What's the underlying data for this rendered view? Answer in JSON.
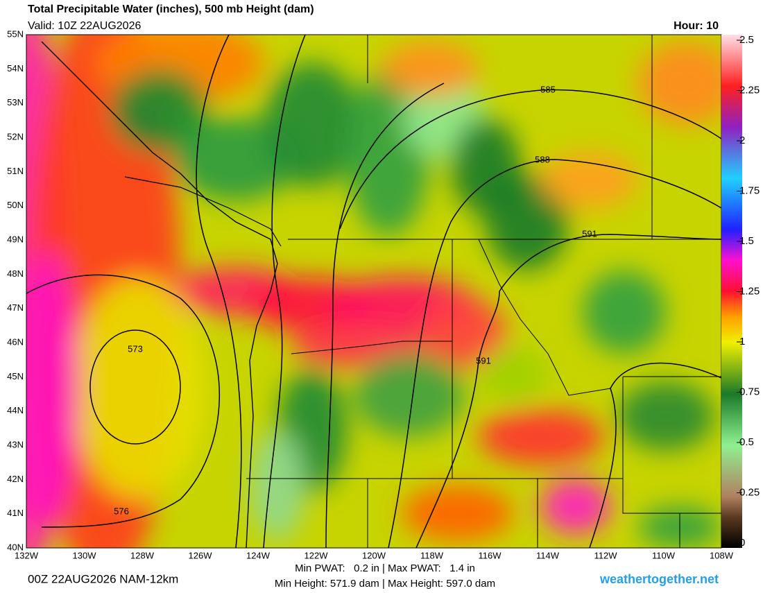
{
  "header": {
    "title": "Total Precipitable Water (inches), 500 mb Height (dam)",
    "valid": "Valid: 10Z 22AUG2026",
    "hour": "Hour: 10"
  },
  "map": {
    "lat_labels": [
      "55N",
      "54N",
      "53N",
      "52N",
      "51N",
      "50N",
      "49N",
      "48N",
      "47N",
      "46N",
      "45N",
      "44N",
      "43N",
      "42N",
      "41N",
      "40N"
    ],
    "lon_labels": [
      "132W",
      "130W",
      "128W",
      "126W",
      "124W",
      "122W",
      "120W",
      "118W",
      "116W",
      "114W",
      "112W",
      "110W",
      "108W"
    ],
    "contour_labels": [
      "585",
      "588",
      "591",
      "591",
      "573",
      "576"
    ]
  },
  "colorbar": {
    "lim": [
      0,
      2.5
    ],
    "ticks": [
      0,
      0.25,
      0.5,
      0.75,
      1,
      1.25,
      1.5,
      1.75,
      2,
      2.25,
      2.5
    ]
  },
  "footer": {
    "run": "00Z 22AUG2026 NAM-12km",
    "pwat": "Min PWAT:   0.2 in | Max PWAT:   1.4 in",
    "height": "Min Height: 571.9 dam | Max Height: 597.0 dam",
    "site": "weathertogether.net"
  }
}
